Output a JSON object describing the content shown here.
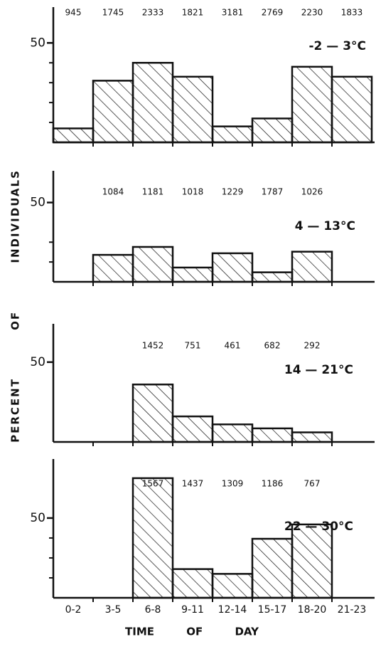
{
  "categories": [
    "0-2",
    "3-5",
    "6-8",
    "9-11",
    "12-14",
    "15-17",
    "18-20",
    "21-23"
  ],
  "xlabel": "TIME OF DAY",
  "ylabel": "PERCENT OF INDIVIDUALS",
  "chart_data": [
    {
      "type": "bar",
      "annotation": "-2 — 3°C",
      "ylim": [
        0,
        68
      ],
      "yticks": [
        50
      ],
      "minor_yticks": [
        10,
        20,
        30,
        40
      ],
      "values": [
        7,
        31,
        40,
        33,
        8,
        12,
        38,
        33
      ],
      "counts": [
        945,
        1745,
        2333,
        1821,
        3181,
        2769,
        2230,
        1833
      ]
    },
    {
      "type": "bar",
      "annotation": "4 — 13°C",
      "ylim": [
        0,
        70
      ],
      "yticks": [
        50
      ],
      "minor_yticks": [
        25,
        12.5
      ],
      "values": [
        null,
        17,
        22,
        9,
        18,
        6,
        19,
        null
      ],
      "counts": [
        null,
        1084,
        1181,
        1018,
        1229,
        1787,
        1026,
        null
      ]
    },
    {
      "type": "bar",
      "annotation": "14 — 21°C",
      "ylim": [
        0,
        74
      ],
      "yticks": [
        50
      ],
      "minor_yticks": [],
      "values": [
        null,
        null,
        36,
        16,
        11,
        8.5,
        6,
        null
      ],
      "counts": [
        null,
        null,
        1452,
        751,
        461,
        682,
        292,
        null
      ]
    },
    {
      "type": "bar",
      "annotation": "22 — 30°C",
      "ylim": [
        0,
        87
      ],
      "yticks": [
        50
      ],
      "minor_yticks": [
        12.5,
        25,
        37.5
      ],
      "values": [
        null,
        null,
        75,
        18,
        15,
        37,
        46,
        null
      ],
      "counts": [
        null,
        null,
        1567,
        1437,
        1309,
        1186,
        767,
        null
      ]
    }
  ]
}
